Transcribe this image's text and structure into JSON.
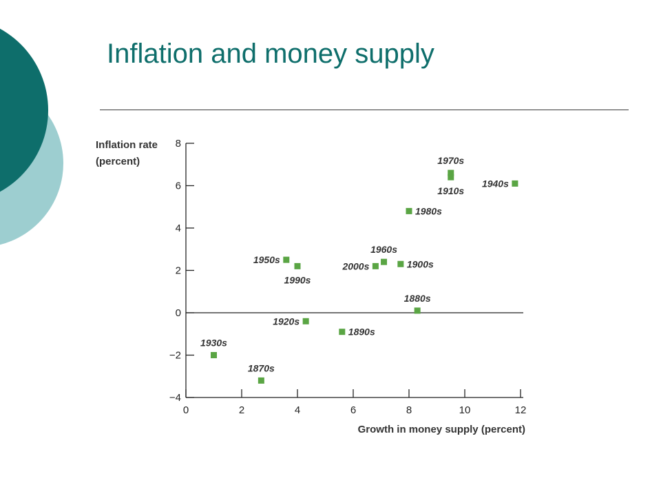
{
  "slide": {
    "title": "Inflation and money supply",
    "accent_dark": "#0e6e6b",
    "accent_light": "#9dced0"
  },
  "chart_data": {
    "type": "scatter",
    "title": "",
    "xlabel": "Growth in money supply (percent)",
    "ylabel_lines": [
      "Inflation rate",
      "(percent)"
    ],
    "xlim": [
      0,
      12
    ],
    "ylim": [
      -4,
      8
    ],
    "x_ticks": [
      0,
      2,
      4,
      6,
      8,
      10,
      12
    ],
    "y_ticks": [
      -4,
      -2,
      0,
      2,
      4,
      6,
      8
    ],
    "y_tick_labels": [
      "−4",
      "−2",
      "0",
      "2",
      "4",
      "6",
      "8"
    ],
    "grid": false,
    "zero_line": true,
    "marker": "square",
    "marker_color": "#5aa544",
    "points": [
      {
        "label": "1970s",
        "x": 9.5,
        "y": 6.6,
        "label_pos": "above"
      },
      {
        "label": "1910s",
        "x": 9.5,
        "y": 6.4,
        "label_pos": "below"
      },
      {
        "label": "1940s",
        "x": 11.8,
        "y": 6.1,
        "label_pos": "left"
      },
      {
        "label": "1980s",
        "x": 8.0,
        "y": 4.8,
        "label_pos": "right"
      },
      {
        "label": "1950s",
        "x": 3.6,
        "y": 2.5,
        "label_pos": "left"
      },
      {
        "label": "1990s",
        "x": 4.0,
        "y": 2.2,
        "label_pos": "below"
      },
      {
        "label": "1960s",
        "x": 7.1,
        "y": 2.4,
        "label_pos": "above"
      },
      {
        "label": "2000s",
        "x": 6.8,
        "y": 2.2,
        "label_pos": "left"
      },
      {
        "label": "1900s",
        "x": 7.7,
        "y": 2.3,
        "label_pos": "right"
      },
      {
        "label": "1880s",
        "x": 8.3,
        "y": 0.1,
        "label_pos": "above"
      },
      {
        "label": "1920s",
        "x": 4.3,
        "y": -0.4,
        "label_pos": "left"
      },
      {
        "label": "1890s",
        "x": 5.6,
        "y": -0.9,
        "label_pos": "right"
      },
      {
        "label": "1930s",
        "x": 1.0,
        "y": -2.0,
        "label_pos": "above"
      },
      {
        "label": "1870s",
        "x": 2.7,
        "y": -3.2,
        "label_pos": "above"
      }
    ]
  }
}
